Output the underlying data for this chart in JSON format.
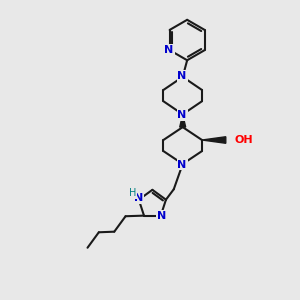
{
  "bg_color": "#e8e8e8",
  "bond_color": "#1a1a1a",
  "N_color": "#0000cd",
  "O_color": "#ff0000",
  "NH_color": "#008080",
  "bond_width": 1.5,
  "figsize": [
    3.0,
    3.0
  ],
  "dpi": 100,
  "xlim": [
    0,
    10
  ],
  "ylim": [
    0,
    10
  ]
}
